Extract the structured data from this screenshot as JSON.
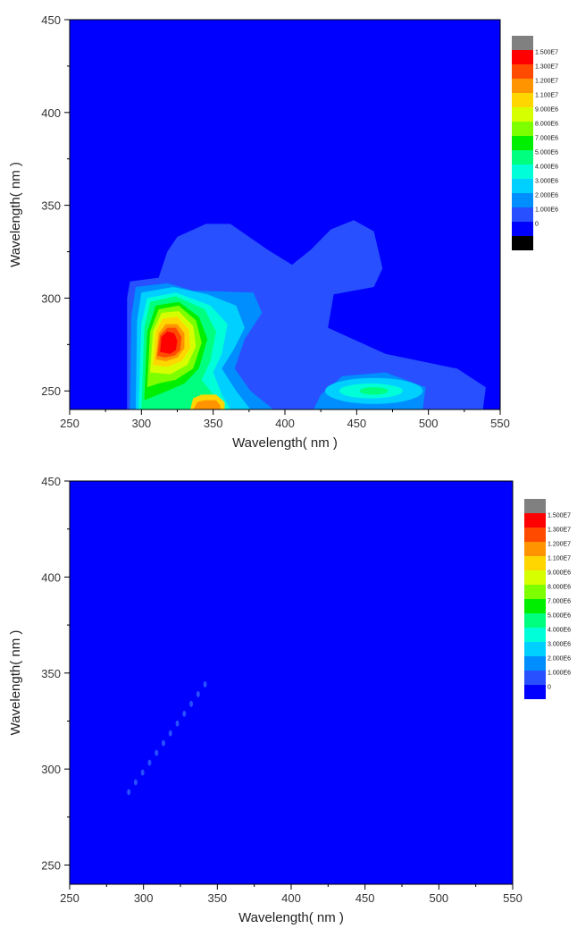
{
  "charts": [
    {
      "xlabel": "Wavelength( nm )",
      "ylabel": "Wavelength( nm )"
    },
    {
      "xlabel": "Wavelength( nm )",
      "ylabel": "Wavelength( nm )"
    }
  ],
  "chart_data": [
    {
      "type": "heatmap",
      "subtype": "contour",
      "xlabel": "Wavelength( nm )",
      "ylabel": "Wavelength( nm )",
      "xlim": [
        250,
        550
      ],
      "ylim": [
        240,
        450
      ],
      "x_ticks": [
        "250",
        "300",
        "350",
        "400",
        "450",
        "500",
        "550"
      ],
      "y_ticks": [
        "250",
        "300",
        "350",
        "400",
        "450"
      ],
      "color_scale": {
        "levels": [
          {
            "label": "1.500E7",
            "color": "#808080"
          },
          {
            "label": "1.500E7",
            "color": "#ff0000"
          },
          {
            "label": "1.300E7",
            "color": "#ff4a00"
          },
          {
            "label": "1.200E7",
            "color": "#ff9400"
          },
          {
            "label": "1.100E7",
            "color": "#ffd600"
          },
          {
            "label": "9.000E6",
            "color": "#d6ff00"
          },
          {
            "label": "8.000E6",
            "color": "#7dff00"
          },
          {
            "label": "7.000E6",
            "color": "#00ee00"
          },
          {
            "label": "5.000E6",
            "color": "#00ff7f"
          },
          {
            "label": "4.000E6",
            "color": "#00ffd8"
          },
          {
            "label": "3.000E6",
            "color": "#00d0ff"
          },
          {
            "label": "2.000E6",
            "color": "#008eff"
          },
          {
            "label": "1.000E6",
            "color": "#2850ff"
          },
          {
            "label": "0",
            "color": "#0000ff"
          },
          {
            "label": "",
            "color": "#000000"
          }
        ]
      },
      "features": [
        {
          "ex_range": [
            290,
            375
          ],
          "em_range": [
            240,
            310
          ],
          "level": "1.000E6"
        },
        {
          "ex_range": [
            290,
            540
          ],
          "em_range": [
            240,
            355
          ],
          "level": "1.000E6"
        },
        {
          "ex_range": [
            300,
            345
          ],
          "em_range": [
            240,
            305
          ],
          "level": "4.000E6"
        },
        {
          "ex_range": [
            305,
            335
          ],
          "em_range": [
            260,
            298
          ],
          "level": "9.000E6"
        },
        {
          "ex_range": [
            310,
            325
          ],
          "em_range": [
            265,
            285
          ],
          "level": "1.500E7"
        },
        {
          "ex_range": [
            425,
            500
          ],
          "em_range": [
            242,
            262
          ],
          "level": "3.000E6"
        },
        {
          "ex_range": [
            335,
            360
          ],
          "em_range": [
            240,
            248
          ],
          "level": "1.100E7"
        }
      ]
    },
    {
      "type": "heatmap",
      "subtype": "contour",
      "xlabel": "Wavelength( nm )",
      "ylabel": "Wavelength( nm )",
      "xlim": [
        250,
        550
      ],
      "ylim": [
        240,
        450
      ],
      "x_ticks": [
        "250",
        "300",
        "350",
        "400",
        "450",
        "500",
        "550"
      ],
      "y_ticks": [
        "250",
        "300",
        "350",
        "400",
        "450"
      ],
      "color_scale": {
        "levels": [
          {
            "label": "1.500E7",
            "color": "#808080"
          },
          {
            "label": "1.500E7",
            "color": "#ff0000"
          },
          {
            "label": "1.300E7",
            "color": "#ff4a00"
          },
          {
            "label": "1.200E7",
            "color": "#ff9400"
          },
          {
            "label": "1.100E7",
            "color": "#ffd600"
          },
          {
            "label": "9.000E6",
            "color": "#d6ff00"
          },
          {
            "label": "8.000E6",
            "color": "#7dff00"
          },
          {
            "label": "7.000E6",
            "color": "#00ee00"
          },
          {
            "label": "5.000E6",
            "color": "#00ff7f"
          },
          {
            "label": "4.000E6",
            "color": "#00ffd8"
          },
          {
            "label": "3.000E6",
            "color": "#00d0ff"
          },
          {
            "label": "2.000E6",
            "color": "#008eff"
          },
          {
            "label": "1.000E6",
            "color": "#2850ff"
          },
          {
            "label": "0",
            "color": "#0000ff"
          }
        ]
      },
      "features": [
        {
          "ex_range": [
            290,
            345
          ],
          "em_range": [
            288,
            345
          ],
          "level": "1.000E6",
          "shape": "diagonal scatter line"
        }
      ]
    }
  ]
}
